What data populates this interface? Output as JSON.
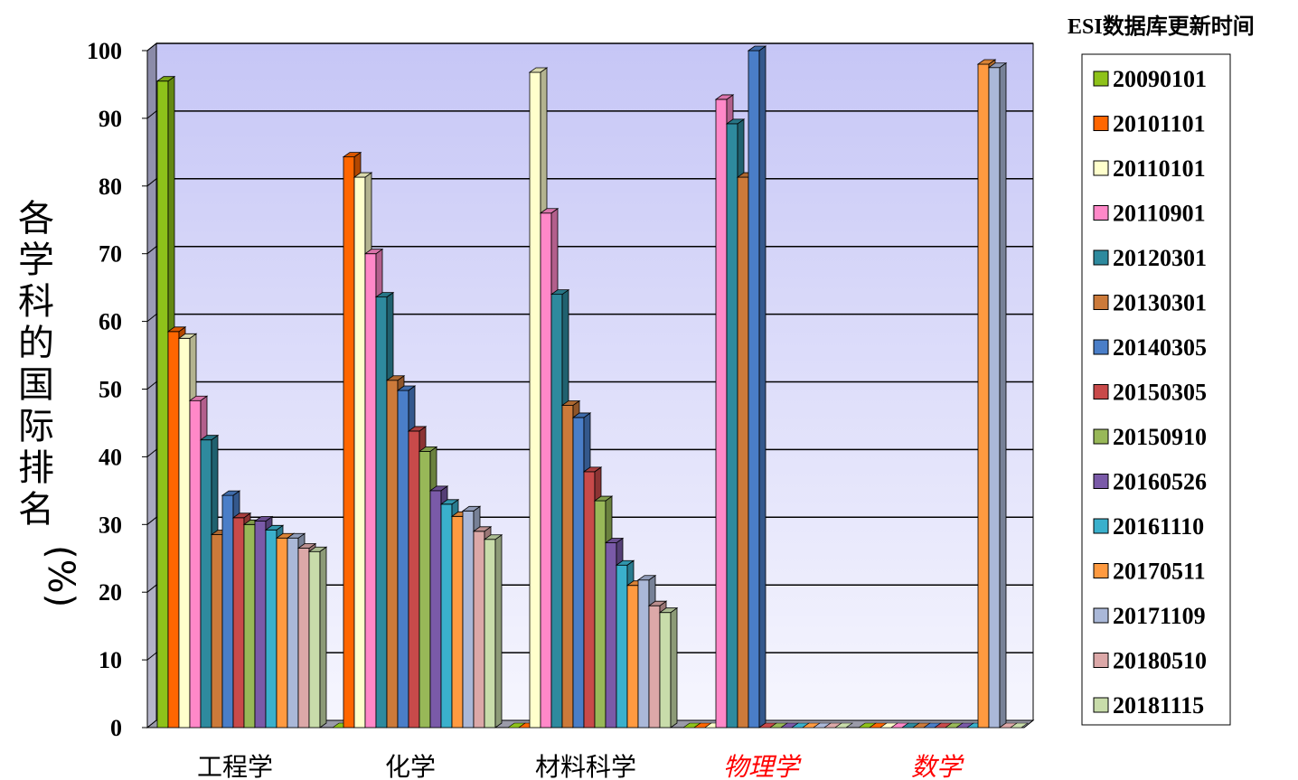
{
  "chart_data": {
    "type": "bar",
    "ylabel_chars": [
      "各",
      "学",
      "科",
      "的",
      "国",
      "际",
      "排",
      "名",
      "(%)"
    ],
    "ylim": [
      0,
      100
    ],
    "yticks": [
      "0",
      "10",
      "20",
      "30",
      "40",
      "50",
      "60",
      "70",
      "80",
      "90",
      "100"
    ],
    "legend_title": "ESI数据库更新时间",
    "legend_position": "right",
    "grid": true,
    "categories": [
      "工程学",
      "化学",
      "材料科学",
      "物理学",
      "数学"
    ],
    "category_colors": [
      "#000000",
      "#000000",
      "#000000",
      "#ff0000",
      "#ff0000"
    ],
    "series": [
      {
        "name": "20090101",
        "color": "#8ec21a",
        "values": [
          95.5,
          0,
          0,
          0,
          0
        ]
      },
      {
        "name": "20101101",
        "color": "#ff6600",
        "values": [
          58.5,
          84.3,
          0,
          0,
          0
        ]
      },
      {
        "name": "20110101",
        "color": "#ffffcc",
        "values": [
          57.5,
          81.3,
          96.8,
          0,
          0
        ]
      },
      {
        "name": "20110901",
        "color": "#ff88c8",
        "values": [
          48.3,
          70.0,
          76.0,
          92.8,
          0
        ]
      },
      {
        "name": "20120301",
        "color": "#2e8a9e",
        "values": [
          42.5,
          63.6,
          64.0,
          89.2,
          0
        ]
      },
      {
        "name": "20130301",
        "color": "#cc7a3a",
        "values": [
          28.5,
          51.3,
          47.6,
          81.3,
          0
        ]
      },
      {
        "name": "20140305",
        "color": "#4a7ec8",
        "values": [
          34.3,
          49.8,
          45.8,
          100,
          0
        ]
      },
      {
        "name": "20150305",
        "color": "#c84a4a",
        "values": [
          31.0,
          43.8,
          37.8,
          0,
          0
        ]
      },
      {
        "name": "20150910",
        "color": "#98b858",
        "values": [
          30.0,
          40.8,
          33.5,
          0,
          0
        ]
      },
      {
        "name": "20160526",
        "color": "#7a5aa8",
        "values": [
          30.5,
          35.0,
          27.3,
          0,
          0
        ]
      },
      {
        "name": "20161110",
        "color": "#3ab0cc",
        "values": [
          29.2,
          33.0,
          24.0,
          0,
          0
        ]
      },
      {
        "name": "20170511",
        "color": "#ff9a40",
        "values": [
          28.0,
          31.2,
          21.0,
          0,
          98.0
        ]
      },
      {
        "name": "20171109",
        "color": "#aab8d8",
        "values": [
          28.0,
          32.0,
          21.8,
          0,
          97.5
        ]
      },
      {
        "name": "20180510",
        "color": "#dca8a8",
        "values": [
          26.5,
          29.0,
          18.0,
          0,
          0
        ]
      },
      {
        "name": "20181115",
        "color": "#c8dcaa",
        "values": [
          26.0,
          27.8,
          17.0,
          0,
          0
        ]
      }
    ]
  }
}
